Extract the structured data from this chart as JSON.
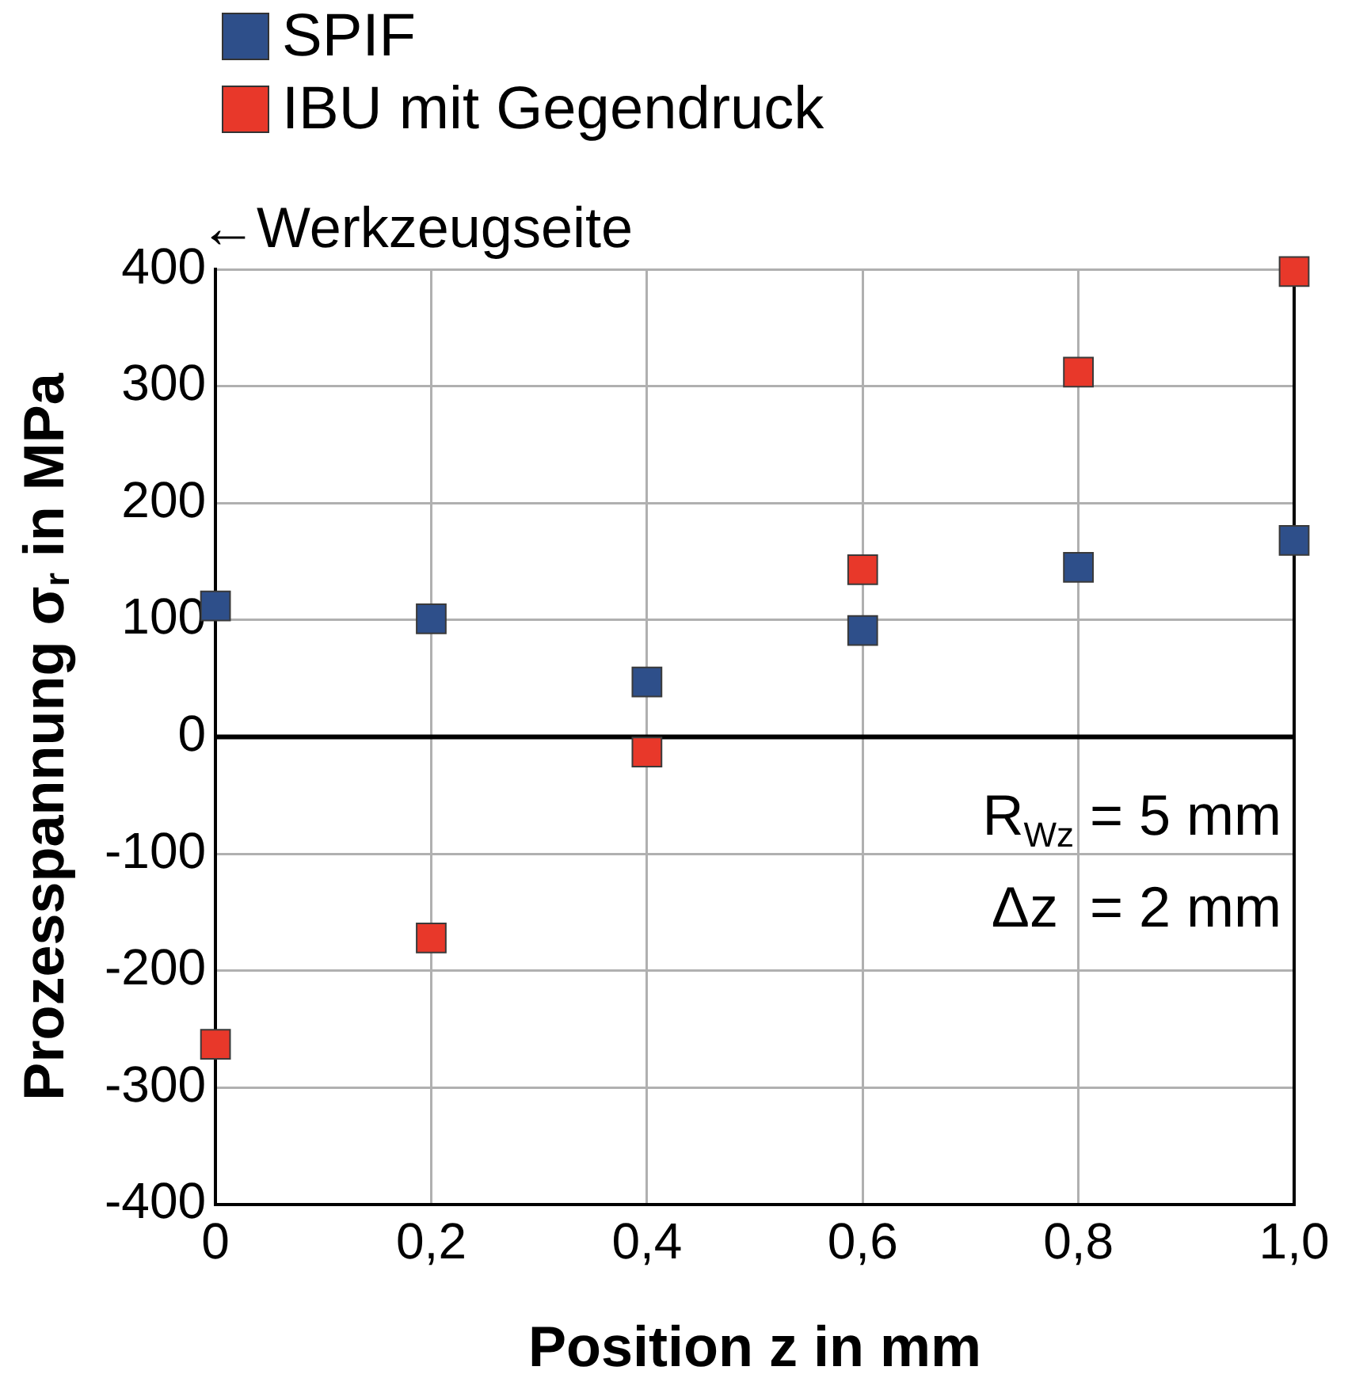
{
  "chart_data": {
    "type": "scatter",
    "xlabel": "Position z in mm",
    "ylabel": "Prozesspannung σ$_{r}$ in MPa",
    "x": [
      0,
      0.2,
      0.4,
      0.6,
      0.8,
      1.0
    ],
    "series": [
      {
        "name": "SPIF",
        "color": "#2e4f8a",
        "values": [
          112,
          101,
          47,
          91,
          145,
          168
        ]
      },
      {
        "name": "IBU mit Gegendruck",
        "color": "#e8382a",
        "values": [
          -263,
          -172,
          -13,
          143,
          312,
          398
        ]
      }
    ],
    "xlim": [
      0,
      1.0
    ],
    "xticks": [
      0,
      {
        "value": 0.2,
        "label": "0,2"
      },
      {
        "value": 0.4,
        "label": "0,4"
      },
      {
        "value": 0.6,
        "label": "0,6"
      },
      {
        "value": 0.8,
        "label": "0,8"
      },
      {
        "value": 1.0,
        "label": "1,0"
      }
    ],
    "ylim": [
      -400,
      400
    ],
    "yticks": [
      -400,
      -300,
      -200,
      -100,
      0,
      100,
      200,
      300,
      400
    ],
    "grid": true,
    "legend": "top left",
    "marker": "square",
    "ref_lines": [
      {
        "axis": "y",
        "value": 0,
        "color": "#000000"
      }
    ],
    "annotations": [
      "←Werkzeugseite",
      "R$_{Wz}$ = 5 mm",
      "Δz  = 2 mm"
    ]
  }
}
